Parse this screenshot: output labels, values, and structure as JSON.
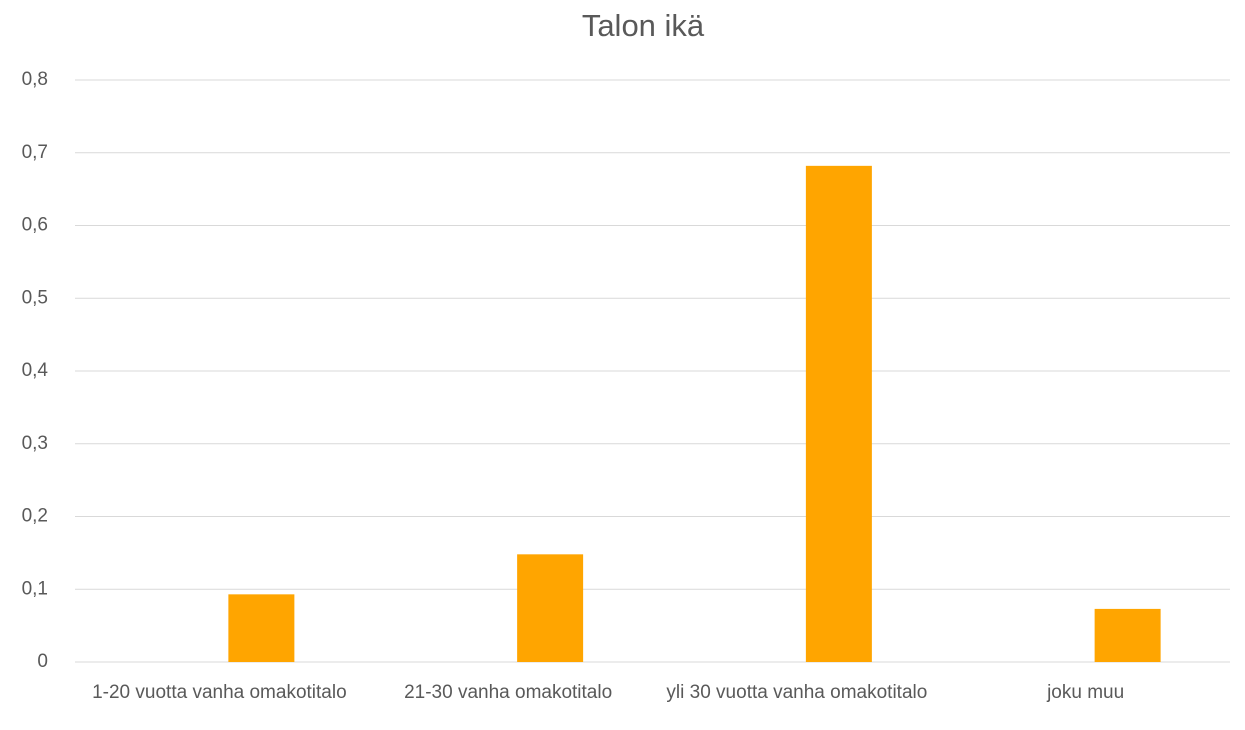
{
  "chart_data": {
    "type": "bar",
    "title": "Talon ikä",
    "categories": [
      "1-20 vuotta vanha omakotitalo",
      "21-30 vanha omakotitalo",
      "yli 30 vuotta vanha omakotitalo",
      "joku muu"
    ],
    "values": [
      0.093,
      0.148,
      0.682,
      0.073
    ],
    "color": "#ffa500",
    "ylim": [
      0,
      0.8
    ],
    "yticks": [
      0,
      {
        "value": 0.1,
        "label": "0,1"
      },
      {
        "value": 0.2,
        "label": "0,2"
      },
      {
        "value": 0.3,
        "label": "0,3"
      },
      {
        "value": 0.4,
        "label": "0,4"
      },
      {
        "value": 0.5,
        "label": "0,5"
      },
      {
        "value": 0.6,
        "label": "0,6"
      },
      {
        "value": 0.7,
        "label": "0,7"
      },
      {
        "value": 0.8,
        "label": "0,8"
      }
    ],
    "grid": true
  }
}
